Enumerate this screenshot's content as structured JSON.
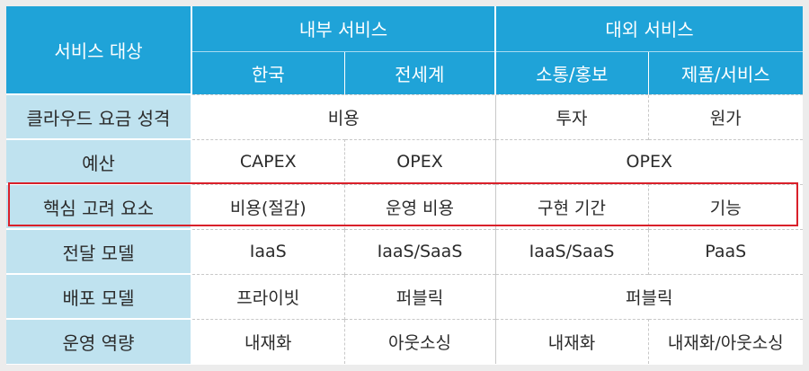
{
  "header": {
    "corner": "서비스 대상",
    "groups": [
      "내부 서비스",
      "대외 서비스"
    ],
    "subs": [
      "한국",
      "전세계",
      "소통/홍보",
      "제품/서비스"
    ]
  },
  "rows": [
    {
      "label": "클라우드 요금 성격",
      "cells": [
        "비용",
        "투자",
        "원가"
      ]
    },
    {
      "label": "예산",
      "cells": [
        "CAPEX",
        "OPEX",
        "OPEX"
      ]
    },
    {
      "label": "핵심 고려 요소",
      "cells": [
        "비용(절감)",
        "운영 비용",
        "구현 기간",
        "기능"
      ]
    },
    {
      "label": "전달 모델",
      "cells": [
        "IaaS",
        "IaaS/SaaS",
        "IaaS/SaaS",
        "PaaS"
      ]
    },
    {
      "label": "배포 모델",
      "cells": [
        "프라이빗",
        "퍼블릭",
        "퍼블릭"
      ]
    },
    {
      "label": "운영 역량",
      "cells": [
        "내재화",
        "아웃소싱",
        "내재화",
        "내재화/아웃소싱"
      ]
    }
  ],
  "highlight_color": "#d9202a",
  "header_color": "#1fa3d8",
  "rowheader_color": "#bfe2ef"
}
